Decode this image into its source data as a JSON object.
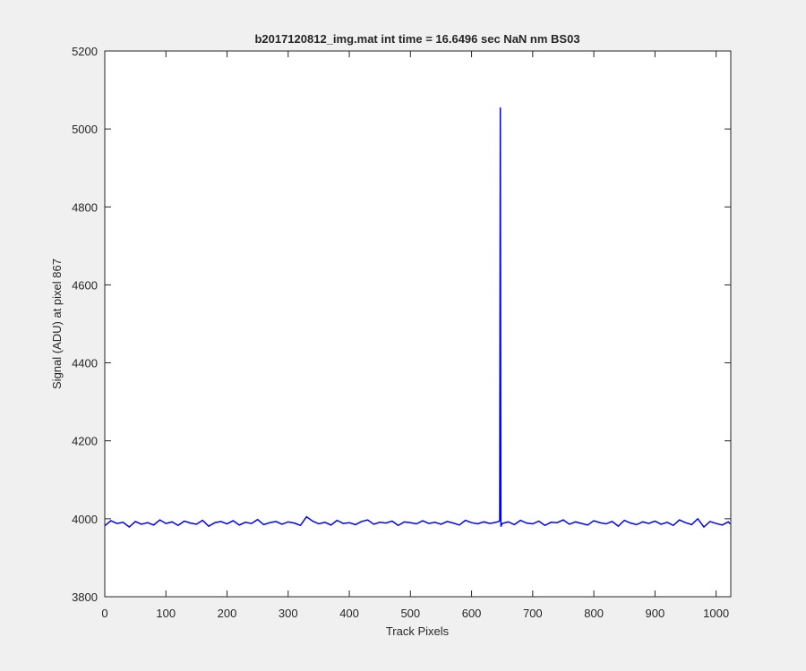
{
  "chart_data": {
    "type": "line",
    "title": "b2017120812_img.mat int time = 16.6496 sec  NaN nm BS03",
    "xlabel": "Track Pixels",
    "ylabel": "Signal (ADU) at pixel 867",
    "x": [
      0,
      10,
      20,
      30,
      40,
      50,
      60,
      70,
      80,
      90,
      100,
      110,
      120,
      130,
      140,
      150,
      160,
      170,
      180,
      190,
      200,
      210,
      220,
      230,
      240,
      250,
      260,
      270,
      280,
      290,
      300,
      310,
      320,
      330,
      340,
      350,
      360,
      370,
      380,
      390,
      400,
      410,
      420,
      430,
      440,
      450,
      460,
      470,
      480,
      490,
      500,
      510,
      520,
      530,
      540,
      550,
      560,
      570,
      580,
      590,
      600,
      610,
      620,
      630,
      640,
      644,
      646,
      647,
      648,
      650,
      660,
      670,
      680,
      690,
      700,
      710,
      720,
      730,
      740,
      750,
      760,
      770,
      780,
      790,
      800,
      810,
      820,
      830,
      840,
      850,
      860,
      870,
      880,
      890,
      900,
      910,
      920,
      930,
      940,
      950,
      960,
      970,
      980,
      990,
      1000,
      1010,
      1020,
      1023
    ],
    "series": [
      {
        "color": "#0000ff",
        "values": [
          3982,
          3995,
          3988,
          3991,
          3979,
          3993,
          3986,
          3990,
          3984,
          3997,
          3988,
          3992,
          3983,
          3994,
          3989,
          3986,
          3996,
          3981,
          3990,
          3993,
          3987,
          3995,
          3984,
          3991,
          3988,
          3998,
          3985,
          3990,
          3993,
          3986,
          3992,
          3989,
          3983,
          4005,
          3994,
          3987,
          3991,
          3984,
          3996,
          3988,
          3990,
          3985,
          3993,
          3997,
          3986,
          3991,
          3989,
          3994,
          3983,
          3992,
          3990,
          3987,
          3995,
          3988,
          3991,
          3986,
          3993,
          3989,
          3984,
          3996,
          3990,
          3987,
          3992,
          3988,
          3991,
          3993,
          3995,
          5055,
          3980,
          3988,
          3992,
          3985,
          3996,
          3989,
          3987,
          3994,
          3983,
          3991,
          3990,
          3997,
          3986,
          3992,
          3988,
          3984,
          3995,
          3990,
          3987,
          3993,
          3981,
          3996,
          3989,
          3985,
          3992,
          3988,
          3994,
          3986,
          3991,
          3983,
          3997,
          3990,
          3985,
          4000,
          3979,
          3993,
          3988,
          3984,
          3992,
          3987
        ]
      }
    ],
    "xlim": [
      0,
      1024
    ],
    "ylim": [
      3800,
      5200
    ],
    "xticks": [
      0,
      100,
      200,
      300,
      400,
      500,
      600,
      700,
      800,
      900,
      1000
    ],
    "yticks": [
      3800,
      4000,
      4200,
      4400,
      4600,
      4800,
      5000,
      5200
    ]
  }
}
